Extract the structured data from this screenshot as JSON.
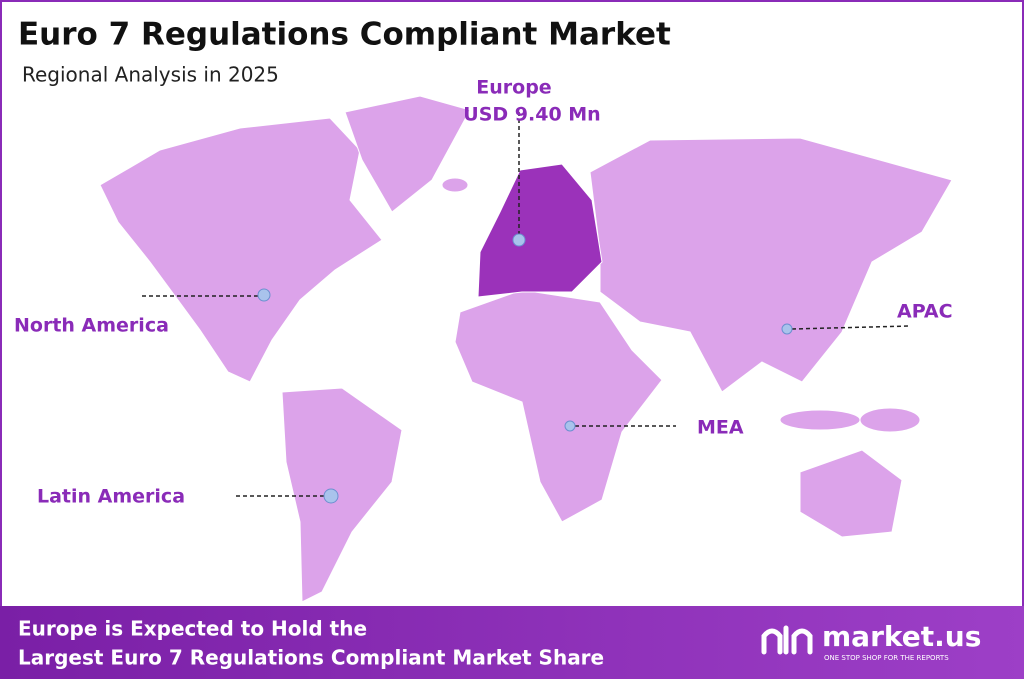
{
  "header": {
    "title": "Euro 7 Regulations Compliant Market",
    "subtitle": "Regional Analysis in 2025"
  },
  "regions": [
    {
      "name": "Europe",
      "value": "USD 9.40 Mn"
    },
    {
      "name": "North America"
    },
    {
      "name": "APAC"
    },
    {
      "name": "MEA"
    },
    {
      "name": "Latin America"
    }
  ],
  "footer": {
    "lines": [
      "Europe is Expected to Hold the",
      "Largest Euro 7 Regulations Compliant Market Share"
    ],
    "logo": "market.us",
    "tagline": "ONE STOP SHOP FOR THE REPORTS"
  }
}
